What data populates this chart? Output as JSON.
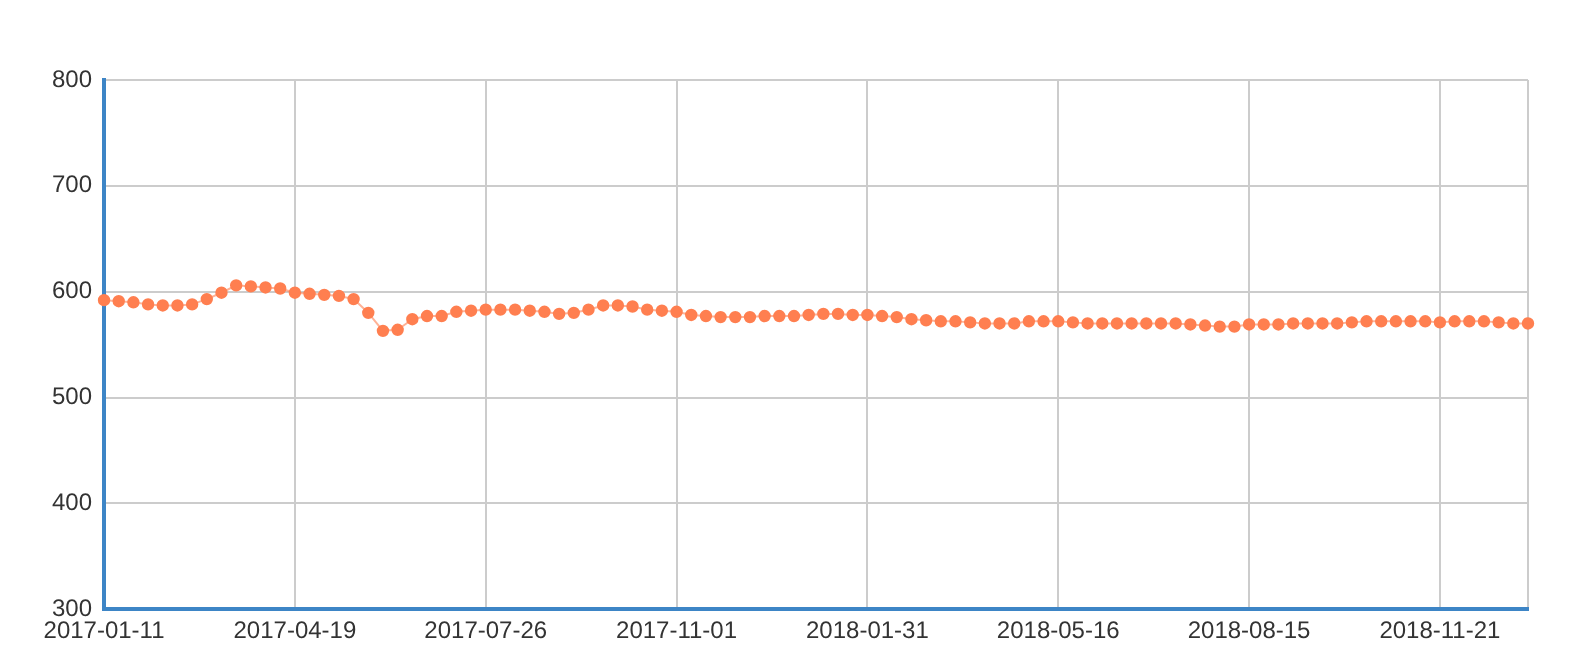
{
  "chart_data": {
    "type": "line",
    "categories": [
      "2017-01-11",
      null,
      null,
      null,
      null,
      null,
      null,
      null,
      null,
      null,
      null,
      null,
      null,
      "2017-04-19",
      null,
      null,
      null,
      null,
      null,
      null,
      null,
      null,
      null,
      null,
      null,
      null,
      "2017-07-26",
      null,
      null,
      null,
      null,
      null,
      null,
      null,
      null,
      null,
      null,
      null,
      null,
      "2017-11-01",
      null,
      null,
      null,
      null,
      null,
      null,
      null,
      null,
      null,
      null,
      null,
      null,
      "2018-01-31",
      null,
      null,
      null,
      null,
      null,
      null,
      null,
      null,
      null,
      null,
      null,
      null,
      "2018-05-16",
      null,
      null,
      null,
      null,
      null,
      null,
      null,
      null,
      null,
      null,
      null,
      null,
      "2018-08-15",
      null,
      null,
      null,
      null,
      null,
      null,
      null,
      null,
      null,
      null,
      null,
      null,
      "2018-11-21",
      null,
      null,
      null,
      null,
      null,
      null
    ],
    "series": [
      {
        "color": "#ff7f50",
        "values": [
          592,
          591,
          590,
          588,
          587,
          587,
          588,
          593,
          599,
          606,
          605,
          604,
          603,
          599,
          598,
          597,
          596,
          593,
          580,
          563,
          564,
          574,
          577,
          577,
          581,
          582,
          583,
          583,
          583,
          582,
          581,
          579,
          580,
          583,
          587,
          587,
          586,
          583,
          582,
          581,
          578,
          577,
          576,
          576,
          576,
          577,
          577,
          577,
          578,
          579,
          579,
          578,
          578,
          577,
          576,
          574,
          573,
          572,
          572,
          571,
          570,
          570,
          570,
          572,
          572,
          572,
          571,
          570,
          570,
          570,
          570,
          570,
          570,
          570,
          569,
          568,
          567,
          567,
          569,
          569,
          569,
          570,
          570,
          570,
          570,
          571,
          572,
          572,
          572,
          572,
          572,
          571,
          572,
          572,
          572,
          571,
          570,
          570
        ]
      }
    ],
    "ylim": [
      300,
      800
    ],
    "yticks": [
      300,
      400,
      500,
      600,
      700,
      800
    ],
    "grid": true,
    "legend": false,
    "marker": "circle",
    "line_style": "solid"
  }
}
